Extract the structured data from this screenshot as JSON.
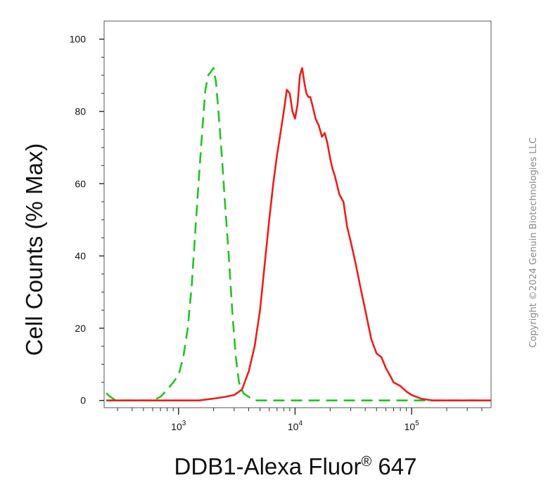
{
  "chart_data": {
    "type": "line",
    "xlabel": "DDB1-Alexa Fluor® 647",
    "xlabel_parts": {
      "main": "DDB1-Alexa Fluor",
      "reg": "®",
      "tail": " 647"
    },
    "ylabel": "Cell Counts (% Max)",
    "x_scale": "log",
    "xlim": [
      230,
      480000
    ],
    "ylim": [
      -2,
      105
    ],
    "y_ticks": [
      0,
      20,
      40,
      60,
      80,
      100
    ],
    "y_tick_labels": [
      "0",
      "20",
      "40",
      "60",
      "80",
      "100"
    ],
    "x_ticks": [
      {
        "value": 1000,
        "base": "10",
        "exp": "3"
      },
      {
        "value": 10000,
        "base": "10",
        "exp": "4"
      },
      {
        "value": 100000,
        "base": "10",
        "exp": "5"
      }
    ],
    "grid": false,
    "legend": "none",
    "series": [
      {
        "color": "#22c322",
        "dash": "dashed",
        "x": [
          240,
          260,
          290,
          330,
          400,
          500,
          600,
          700,
          800,
          900,
          1000,
          1100,
          1200,
          1300,
          1400,
          1500,
          1600,
          1700,
          1800,
          1900,
          2000,
          2100,
          2200,
          2350,
          2500,
          2700,
          2900,
          3100,
          3300,
          3600,
          4000,
          4500,
          5000,
          7000,
          10000,
          30000,
          100000,
          400000
        ],
        "y": [
          2,
          1,
          0,
          0,
          0,
          0,
          0,
          1,
          3,
          5,
          7,
          12,
          20,
          32,
          48,
          62,
          75,
          86,
          90,
          91,
          92,
          88,
          80,
          68,
          55,
          40,
          24,
          12,
          5,
          2,
          1,
          0,
          0,
          0,
          0,
          0,
          0,
          0
        ]
      },
      {
        "color": "#ee1c1c",
        "dash": "solid",
        "x": [
          240,
          400,
          700,
          1000,
          1500,
          2000,
          2500,
          3000,
          3500,
          4000,
          4500,
          5000,
          5500,
          6000,
          6500,
          7000,
          7500,
          8000,
          8500,
          9000,
          9500,
          10000,
          10500,
          11000,
          11500,
          12000,
          12500,
          13000,
          13500,
          14000,
          15000,
          16000,
          17000,
          18000,
          19000,
          20000,
          21000,
          22000,
          24000,
          26000,
          28000,
          30000,
          33000,
          36000,
          40000,
          45000,
          50000,
          55000,
          60000,
          65000,
          70000,
          80000,
          90000,
          100000,
          120000,
          150000,
          200000,
          300000,
          480000
        ],
        "y": [
          0,
          0,
          0,
          0,
          0,
          0.5,
          1,
          1.5,
          3,
          8,
          15,
          25,
          38,
          50,
          60,
          68,
          74,
          80,
          86,
          85,
          80,
          78,
          82,
          90,
          92,
          88,
          85,
          84,
          84,
          82,
          78,
          76,
          73,
          74,
          71,
          67,
          64,
          62,
          57,
          55,
          48,
          44,
          38,
          32,
          25,
          17,
          13,
          12,
          9,
          7,
          5,
          4,
          2.5,
          1.5,
          0.5,
          0,
          0,
          0,
          0
        ]
      }
    ]
  },
  "watermark": "Copyright ©2024 Genuin Biotechnologies LLC"
}
